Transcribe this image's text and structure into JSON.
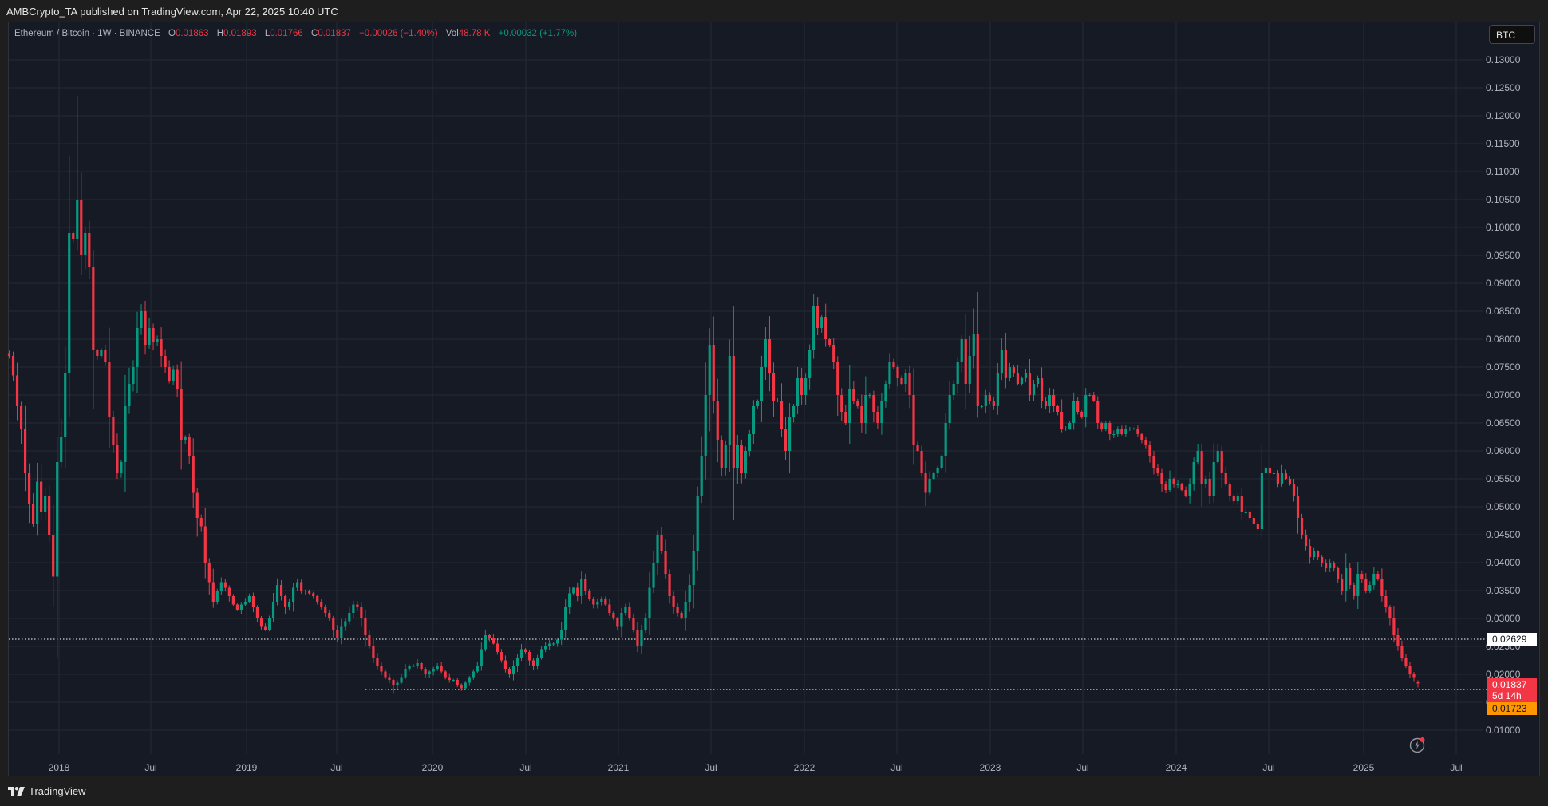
{
  "publish_bar": {
    "text": "AMBCrypto_TA published on TradingView.com, Apr 22, 2025 10:40 UTC"
  },
  "legend": {
    "symbol": "Ethereum / Bitcoin · 1W · BINANCE",
    "open_label": "O",
    "open": "0.01863",
    "high_label": "H",
    "high": "0.01893",
    "low_label": "L",
    "low": "0.01766",
    "close_label": "C",
    "close": "0.01837",
    "change": "−0.00026 (−1.40%)",
    "vol_label": "Vol",
    "vol": "48.78 K",
    "vol_change": "+0.00032 (+1.77%)"
  },
  "currency_badge": "BTC",
  "price_axis": {
    "ticks": [
      "0.13000",
      "0.12500",
      "0.12000",
      "0.11500",
      "0.11000",
      "0.10500",
      "0.10000",
      "0.09500",
      "0.09000",
      "0.08500",
      "0.08000",
      "0.07500",
      "0.07000",
      "0.06500",
      "0.06000",
      "0.05500",
      "0.05000",
      "0.04500",
      "0.04000",
      "0.03500",
      "0.03000",
      "0.02500",
      "0.02000",
      "0.01500",
      "0.01000"
    ],
    "horizontal_line_label": "0.02629",
    "last_price_label": "0.01837",
    "countdown_label": "5d 14h",
    "support_line_label": "0.01723"
  },
  "time_axis": {
    "labels": [
      "2018",
      "Jul",
      "2019",
      "Jul",
      "2020",
      "Jul",
      "2021",
      "Jul",
      "2022",
      "Jul",
      "2023",
      "Jul",
      "2024",
      "Jul",
      "2025",
      "Jul"
    ]
  },
  "footer": {
    "brand": "TradingView"
  },
  "colors": {
    "up": "#089981",
    "down": "#f23645",
    "background": "#161a25",
    "grid": "#252934",
    "hline_white": "#ffffff",
    "hline_orange": "#ff9800"
  },
  "chart_data": {
    "type": "candlestick",
    "title": "Ethereum / Bitcoin · 1W · BINANCE",
    "xlabel": "",
    "ylabel": "BTC",
    "x_range": [
      "2017-09",
      "2025-04"
    ],
    "ylim": [
      0.005,
      0.135
    ],
    "grid": true,
    "horizontal_lines": [
      {
        "value": 0.02629,
        "color": "#ffffff",
        "style": "dotted"
      },
      {
        "value": 0.01723,
        "color": "#ff9800",
        "style": "dotted"
      }
    ],
    "last": {
      "open": 0.01863,
      "high": 0.01893,
      "low": 0.01766,
      "close": 0.01837
    },
    "anchors_note": "approximate weekly close path read from chart (x = weeks from first candle)",
    "anchors": [
      [
        0,
        0.077
      ],
      [
        1,
        0.0735
      ],
      [
        2,
        0.068
      ],
      [
        3,
        0.064
      ],
      [
        4,
        0.056
      ],
      [
        5,
        0.0505
      ],
      [
        6,
        0.047
      ],
      [
        7,
        0.0545
      ],
      [
        8,
        0.049
      ],
      [
        9,
        0.052
      ],
      [
        10,
        0.045
      ],
      [
        11,
        0.0375
      ],
      [
        12,
        0.058
      ],
      [
        13,
        0.0625
      ],
      [
        14,
        0.074
      ],
      [
        15,
        0.099
      ],
      [
        16,
        0.098
      ],
      [
        17,
        0.105
      ],
      [
        18,
        0.095
      ],
      [
        19,
        0.099
      ],
      [
        20,
        0.093
      ],
      [
        21,
        0.078
      ],
      [
        22,
        0.077
      ],
      [
        23,
        0.078
      ],
      [
        24,
        0.076
      ],
      [
        25,
        0.066
      ],
      [
        26,
        0.061
      ],
      [
        27,
        0.056
      ],
      [
        28,
        0.058
      ],
      [
        29,
        0.068
      ],
      [
        30,
        0.072
      ],
      [
        31,
        0.075
      ],
      [
        32,
        0.082
      ],
      [
        33,
        0.085
      ],
      [
        34,
        0.079
      ],
      [
        35,
        0.082
      ],
      [
        36,
        0.0795
      ],
      [
        37,
        0.08
      ],
      [
        38,
        0.077
      ],
      [
        39,
        0.075
      ],
      [
        40,
        0.0725
      ],
      [
        41,
        0.0745
      ],
      [
        42,
        0.071
      ],
      [
        43,
        0.062
      ],
      [
        44,
        0.0625
      ],
      [
        45,
        0.059
      ],
      [
        46,
        0.0525
      ],
      [
        47,
        0.048
      ],
      [
        48,
        0.0465
      ],
      [
        49,
        0.04
      ],
      [
        50,
        0.0365
      ],
      [
        51,
        0.033
      ],
      [
        52,
        0.035
      ],
      [
        53,
        0.0365
      ],
      [
        54,
        0.0355
      ],
      [
        55,
        0.034
      ],
      [
        56,
        0.0325
      ],
      [
        57,
        0.0315
      ],
      [
        58,
        0.0325
      ],
      [
        59,
        0.033
      ],
      [
        60,
        0.034
      ],
      [
        61,
        0.032
      ],
      [
        62,
        0.03
      ],
      [
        63,
        0.0285
      ],
      [
        64,
        0.028
      ],
      [
        65,
        0.03
      ],
      [
        66,
        0.033
      ],
      [
        67,
        0.036
      ],
      [
        68,
        0.034
      ],
      [
        69,
        0.032
      ],
      [
        70,
        0.033
      ],
      [
        71,
        0.0355
      ],
      [
        72,
        0.0365
      ],
      [
        73,
        0.035
      ],
      [
        74,
        0.035
      ],
      [
        75,
        0.0345
      ],
      [
        76,
        0.034
      ],
      [
        77,
        0.033
      ],
      [
        78,
        0.032
      ],
      [
        79,
        0.031
      ],
      [
        80,
        0.03
      ],
      [
        81,
        0.028
      ],
      [
        82,
        0.0265
      ],
      [
        83,
        0.0285
      ],
      [
        84,
        0.0295
      ],
      [
        85,
        0.031
      ],
      [
        86,
        0.0325
      ],
      [
        87,
        0.032
      ],
      [
        88,
        0.03
      ],
      [
        89,
        0.027
      ],
      [
        90,
        0.025
      ],
      [
        91,
        0.023
      ],
      [
        92,
        0.0215
      ],
      [
        93,
        0.0205
      ],
      [
        94,
        0.0195
      ],
      [
        95,
        0.019
      ],
      [
        96,
        0.018
      ],
      [
        97,
        0.0185
      ],
      [
        98,
        0.0195
      ],
      [
        99,
        0.021
      ],
      [
        100,
        0.0215
      ],
      [
        101,
        0.0215
      ],
      [
        102,
        0.022
      ],
      [
        103,
        0.021
      ],
      [
        104,
        0.02
      ],
      [
        105,
        0.0205
      ],
      [
        106,
        0.021
      ],
      [
        107,
        0.0215
      ],
      [
        108,
        0.0205
      ],
      [
        109,
        0.0195
      ],
      [
        110,
        0.019
      ],
      [
        111,
        0.019
      ],
      [
        112,
        0.018
      ],
      [
        113,
        0.0175
      ],
      [
        114,
        0.0185
      ],
      [
        115,
        0.0195
      ],
      [
        116,
        0.0205
      ],
      [
        117,
        0.0215
      ],
      [
        118,
        0.0245
      ],
      [
        119,
        0.027
      ],
      [
        120,
        0.0265
      ],
      [
        121,
        0.0255
      ],
      [
        122,
        0.024
      ],
      [
        123,
        0.0225
      ],
      [
        124,
        0.021
      ],
      [
        125,
        0.02
      ],
      [
        126,
        0.0215
      ],
      [
        127,
        0.023
      ],
      [
        128,
        0.0245
      ],
      [
        129,
        0.024
      ],
      [
        130,
        0.0225
      ],
      [
        131,
        0.0215
      ],
      [
        132,
        0.023
      ],
      [
        133,
        0.0245
      ],
      [
        134,
        0.025
      ],
      [
        135,
        0.0255
      ],
      [
        136,
        0.0255
      ],
      [
        137,
        0.0262
      ],
      [
        138,
        0.028
      ],
      [
        139,
        0.032
      ],
      [
        140,
        0.0345
      ],
      [
        141,
        0.0355
      ],
      [
        142,
        0.034
      ],
      [
        143,
        0.037
      ],
      [
        144,
        0.035
      ],
      [
        145,
        0.0335
      ],
      [
        146,
        0.0325
      ],
      [
        147,
        0.033
      ],
      [
        148,
        0.0335
      ],
      [
        149,
        0.0325
      ],
      [
        150,
        0.031
      ],
      [
        151,
        0.03
      ],
      [
        152,
        0.0285
      ],
      [
        153,
        0.031
      ],
      [
        154,
        0.032
      ],
      [
        155,
        0.03
      ],
      [
        156,
        0.028
      ],
      [
        157,
        0.025
      ],
      [
        158,
        0.028
      ],
      [
        159,
        0.03
      ],
      [
        160,
        0.0355
      ],
      [
        161,
        0.04
      ],
      [
        162,
        0.045
      ],
      [
        163,
        0.042
      ],
      [
        164,
        0.038
      ],
      [
        165,
        0.034
      ],
      [
        166,
        0.032
      ],
      [
        167,
        0.031
      ],
      [
        168,
        0.03
      ],
      [
        169,
        0.033
      ],
      [
        170,
        0.036
      ],
      [
        171,
        0.042
      ],
      [
        172,
        0.052
      ],
      [
        173,
        0.059
      ],
      [
        174,
        0.07
      ],
      [
        175,
        0.079
      ],
      [
        176,
        0.069
      ],
      [
        177,
        0.062
      ],
      [
        178,
        0.057
      ],
      [
        179,
        0.061
      ],
      [
        180,
        0.077
      ],
      [
        181,
        0.057
      ],
      [
        182,
        0.061
      ],
      [
        183,
        0.056
      ],
      [
        184,
        0.06
      ],
      [
        185,
        0.063
      ],
      [
        186,
        0.068
      ],
      [
        187,
        0.069
      ],
      [
        188,
        0.075
      ],
      [
        189,
        0.08
      ],
      [
        190,
        0.074
      ],
      [
        191,
        0.069
      ],
      [
        192,
        0.069
      ],
      [
        193,
        0.064
      ],
      [
        194,
        0.06
      ],
      [
        195,
        0.066
      ],
      [
        196,
        0.068
      ],
      [
        197,
        0.073
      ],
      [
        198,
        0.07
      ],
      [
        199,
        0.073
      ],
      [
        200,
        0.078
      ],
      [
        201,
        0.086
      ],
      [
        202,
        0.082
      ],
      [
        203,
        0.084
      ],
      [
        204,
        0.08
      ],
      [
        205,
        0.079
      ],
      [
        206,
        0.076
      ],
      [
        207,
        0.07
      ],
      [
        208,
        0.067
      ],
      [
        209,
        0.065
      ],
      [
        210,
        0.071
      ],
      [
        211,
        0.069
      ],
      [
        212,
        0.068
      ],
      [
        213,
        0.065
      ],
      [
        214,
        0.07
      ],
      [
        215,
        0.07
      ],
      [
        216,
        0.067
      ],
      [
        217,
        0.065
      ],
      [
        218,
        0.069
      ],
      [
        219,
        0.072
      ],
      [
        220,
        0.076
      ],
      [
        221,
        0.075
      ],
      [
        222,
        0.073
      ],
      [
        223,
        0.072
      ],
      [
        224,
        0.074
      ],
      [
        225,
        0.07
      ],
      [
        226,
        0.061
      ],
      [
        227,
        0.06
      ],
      [
        228,
        0.056
      ],
      [
        229,
        0.0525
      ],
      [
        230,
        0.055
      ],
      [
        231,
        0.056
      ],
      [
        232,
        0.057
      ],
      [
        233,
        0.059
      ],
      [
        234,
        0.065
      ],
      [
        235,
        0.07
      ],
      [
        236,
        0.072
      ],
      [
        237,
        0.076
      ],
      [
        238,
        0.08
      ],
      [
        239,
        0.072
      ],
      [
        240,
        0.077
      ],
      [
        241,
        0.081
      ],
      [
        242,
        0.068
      ],
      [
        243,
        0.068
      ],
      [
        244,
        0.07
      ],
      [
        245,
        0.069
      ],
      [
        246,
        0.068
      ],
      [
        247,
        0.074
      ],
      [
        248,
        0.078
      ],
      [
        249,
        0.073
      ],
      [
        250,
        0.075
      ],
      [
        251,
        0.074
      ],
      [
        252,
        0.072
      ],
      [
        253,
        0.073
      ],
      [
        254,
        0.074
      ],
      [
        255,
        0.07
      ],
      [
        256,
        0.072
      ],
      [
        257,
        0.073
      ],
      [
        258,
        0.069
      ],
      [
        259,
        0.068
      ],
      [
        260,
        0.07
      ],
      [
        261,
        0.068
      ],
      [
        262,
        0.067
      ],
      [
        263,
        0.064
      ],
      [
        264,
        0.064
      ],
      [
        265,
        0.065
      ],
      [
        266,
        0.069
      ],
      [
        267,
        0.067
      ],
      [
        268,
        0.066
      ],
      [
        269,
        0.07
      ],
      [
        270,
        0.07
      ],
      [
        271,
        0.069
      ],
      [
        272,
        0.065
      ],
      [
        273,
        0.064
      ],
      [
        274,
        0.065
      ],
      [
        275,
        0.063
      ],
      [
        276,
        0.063
      ],
      [
        277,
        0.064
      ],
      [
        278,
        0.063
      ],
      [
        279,
        0.064
      ],
      [
        280,
        0.064
      ],
      [
        281,
        0.064
      ],
      [
        282,
        0.063
      ],
      [
        283,
        0.062
      ],
      [
        284,
        0.061
      ],
      [
        285,
        0.059
      ],
      [
        286,
        0.057
      ],
      [
        287,
        0.056
      ],
      [
        288,
        0.054
      ],
      [
        289,
        0.053
      ],
      [
        290,
        0.055
      ],
      [
        291,
        0.054
      ],
      [
        292,
        0.054
      ],
      [
        293,
        0.053
      ],
      [
        294,
        0.052
      ],
      [
        295,
        0.054
      ],
      [
        296,
        0.058
      ],
      [
        297,
        0.06
      ],
      [
        298,
        0.054
      ],
      [
        299,
        0.055
      ],
      [
        300,
        0.052
      ],
      [
        301,
        0.058
      ],
      [
        302,
        0.06
      ],
      [
        303,
        0.056
      ],
      [
        304,
        0.054
      ],
      [
        305,
        0.052
      ],
      [
        306,
        0.051
      ],
      [
        307,
        0.052
      ],
      [
        308,
        0.049
      ],
      [
        309,
        0.049
      ],
      [
        310,
        0.048
      ],
      [
        311,
        0.047
      ],
      [
        312,
        0.046
      ],
      [
        313,
        0.056
      ],
      [
        314,
        0.057
      ],
      [
        315,
        0.056
      ],
      [
        316,
        0.056
      ],
      [
        317,
        0.054
      ],
      [
        318,
        0.056
      ],
      [
        319,
        0.055
      ],
      [
        320,
        0.054
      ],
      [
        321,
        0.052
      ],
      [
        322,
        0.048
      ],
      [
        323,
        0.045
      ],
      [
        324,
        0.043
      ],
      [
        325,
        0.041
      ],
      [
        326,
        0.042
      ],
      [
        327,
        0.041
      ],
      [
        328,
        0.04
      ],
      [
        329,
        0.039
      ],
      [
        330,
        0.04
      ],
      [
        331,
        0.039
      ],
      [
        332,
        0.037
      ],
      [
        333,
        0.035
      ],
      [
        334,
        0.039
      ],
      [
        335,
        0.036
      ],
      [
        336,
        0.034
      ],
      [
        337,
        0.038
      ],
      [
        338,
        0.037
      ],
      [
        339,
        0.035
      ],
      [
        340,
        0.036
      ],
      [
        341,
        0.038
      ],
      [
        342,
        0.037
      ],
      [
        343,
        0.034
      ],
      [
        344,
        0.032
      ],
      [
        345,
        0.03
      ],
      [
        346,
        0.027
      ],
      [
        347,
        0.025
      ],
      [
        348,
        0.023
      ],
      [
        349,
        0.0215
      ],
      [
        350,
        0.02
      ],
      [
        351,
        0.0195
      ],
      [
        352,
        0.01837
      ]
    ]
  }
}
